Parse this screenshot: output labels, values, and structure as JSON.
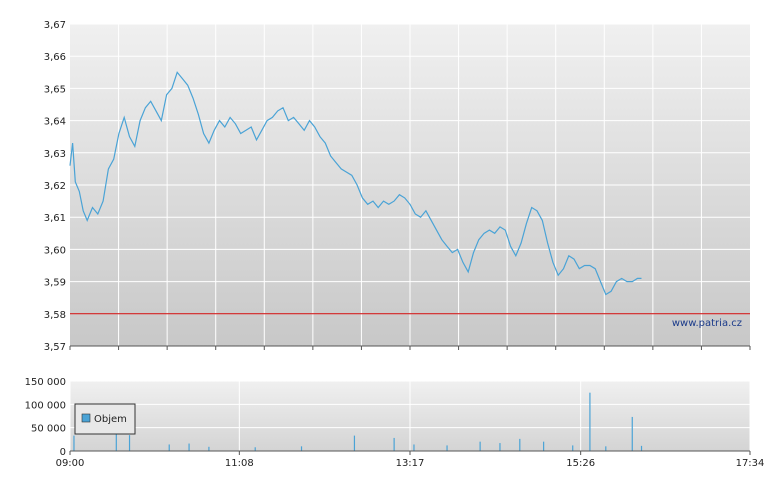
{
  "chart_data": [
    {
      "type": "line",
      "title": "",
      "xlabel": "",
      "ylabel": "",
      "ylim": [
        3.57,
        3.67
      ],
      "y_ticks": [
        "3,57",
        "3,58",
        "3,59",
        "3,60",
        "3,61",
        "3,62",
        "3,63",
        "3,64",
        "3,65",
        "3,66",
        "3,67"
      ],
      "x_ticks": [],
      "grid": true,
      "series": [
        {
          "color": "#4aa3d6",
          "points": [
            [
              "09:00",
              3.626
            ],
            [
              "09:02",
              3.633
            ],
            [
              "09:04",
              3.621
            ],
            [
              "09:07",
              3.618
            ],
            [
              "09:10",
              3.612
            ],
            [
              "09:13",
              3.609
            ],
            [
              "09:17",
              3.613
            ],
            [
              "09:21",
              3.611
            ],
            [
              "09:25",
              3.615
            ],
            [
              "09:29",
              3.625
            ],
            [
              "09:33",
              3.628
            ],
            [
              "09:37",
              3.636
            ],
            [
              "09:41",
              3.641
            ],
            [
              "09:45",
              3.635
            ],
            [
              "09:49",
              3.632
            ],
            [
              "09:53",
              3.64
            ],
            [
              "09:57",
              3.644
            ],
            [
              "10:01",
              3.646
            ],
            [
              "10:05",
              3.643
            ],
            [
              "10:09",
              3.64
            ],
            [
              "10:13",
              3.648
            ],
            [
              "10:17",
              3.65
            ],
            [
              "10:21",
              3.655
            ],
            [
              "10:25",
              3.653
            ],
            [
              "10:29",
              3.651
            ],
            [
              "10:33",
              3.647
            ],
            [
              "10:37",
              3.642
            ],
            [
              "10:41",
              3.636
            ],
            [
              "10:45",
              3.633
            ],
            [
              "10:49",
              3.637
            ],
            [
              "10:53",
              3.64
            ],
            [
              "10:57",
              3.638
            ],
            [
              "11:01",
              3.641
            ],
            [
              "11:05",
              3.639
            ],
            [
              "11:09",
              3.636
            ],
            [
              "11:13",
              3.637
            ],
            [
              "11:17",
              3.638
            ],
            [
              "11:21",
              3.634
            ],
            [
              "11:25",
              3.637
            ],
            [
              "11:29",
              3.64
            ],
            [
              "11:33",
              3.641
            ],
            [
              "11:37",
              3.643
            ],
            [
              "11:41",
              3.644
            ],
            [
              "11:45",
              3.64
            ],
            [
              "11:49",
              3.641
            ],
            [
              "11:53",
              3.639
            ],
            [
              "11:57",
              3.637
            ],
            [
              "12:01",
              3.64
            ],
            [
              "12:05",
              3.638
            ],
            [
              "12:09",
              3.635
            ],
            [
              "12:13",
              3.633
            ],
            [
              "12:17",
              3.629
            ],
            [
              "12:21",
              3.627
            ],
            [
              "12:25",
              3.625
            ],
            [
              "12:29",
              3.624
            ],
            [
              "12:33",
              3.623
            ],
            [
              "12:37",
              3.62
            ],
            [
              "12:41",
              3.616
            ],
            [
              "12:45",
              3.614
            ],
            [
              "12:49",
              3.615
            ],
            [
              "12:53",
              3.613
            ],
            [
              "12:57",
              3.615
            ],
            [
              "13:01",
              3.614
            ],
            [
              "13:05",
              3.615
            ],
            [
              "13:09",
              3.617
            ],
            [
              "13:13",
              3.616
            ],
            [
              "13:17",
              3.614
            ],
            [
              "13:21",
              3.611
            ],
            [
              "13:25",
              3.61
            ],
            [
              "13:29",
              3.612
            ],
            [
              "13:33",
              3.609
            ],
            [
              "13:37",
              3.606
            ],
            [
              "13:41",
              3.603
            ],
            [
              "13:45",
              3.601
            ],
            [
              "13:49",
              3.599
            ],
            [
              "13:53",
              3.6
            ],
            [
              "13:57",
              3.596
            ],
            [
              "14:01",
              3.593
            ],
            [
              "14:05",
              3.599
            ],
            [
              "14:09",
              3.603
            ],
            [
              "14:13",
              3.605
            ],
            [
              "14:17",
              3.606
            ],
            [
              "14:21",
              3.605
            ],
            [
              "14:25",
              3.607
            ],
            [
              "14:29",
              3.606
            ],
            [
              "14:33",
              3.601
            ],
            [
              "14:37",
              3.598
            ],
            [
              "14:41",
              3.602
            ],
            [
              "14:45",
              3.608
            ],
            [
              "14:49",
              3.613
            ],
            [
              "14:53",
              3.612
            ],
            [
              "14:57",
              3.609
            ],
            [
              "15:01",
              3.602
            ],
            [
              "15:05",
              3.596
            ],
            [
              "15:09",
              3.592
            ],
            [
              "15:13",
              3.594
            ],
            [
              "15:17",
              3.598
            ],
            [
              "15:21",
              3.597
            ],
            [
              "15:25",
              3.594
            ],
            [
              "15:29",
              3.595
            ],
            [
              "15:33",
              3.595
            ],
            [
              "15:37",
              3.594
            ],
            [
              "15:41",
              3.59
            ],
            [
              "15:45",
              3.586
            ],
            [
              "15:49",
              3.587
            ],
            [
              "15:53",
              3.59
            ],
            [
              "15:57",
              3.591
            ],
            [
              "16:01",
              3.59
            ],
            [
              "16:05",
              3.59
            ],
            [
              "16:09",
              3.591
            ],
            [
              "16:12",
              3.591
            ]
          ]
        }
      ],
      "annotations": [
        "www.patria.cz"
      ],
      "reference_lines": [
        {
          "y": 3.58,
          "color": "#cc0000"
        }
      ]
    },
    {
      "type": "bar",
      "title": "",
      "ylim": [
        0,
        150000
      ],
      "y_ticks": [
        "0",
        "50 000",
        "100 000",
        "150 000"
      ],
      "x_ticks": [
        "09:00",
        "11:08",
        "13:17",
        "15:26",
        "17:34"
      ],
      "grid": true,
      "legend": {
        "position": "top-left",
        "entries": [
          "Objem"
        ]
      },
      "series": [
        {
          "name": "Objem",
          "color": "#4aa3d6",
          "points": [
            [
              "09:03",
              33000
            ],
            [
              "09:35",
              51000
            ],
            [
              "09:45",
              34000
            ],
            [
              "10:15",
              14000
            ],
            [
              "10:30",
              16000
            ],
            [
              "10:45",
              9000
            ],
            [
              "11:20",
              8000
            ],
            [
              "11:55",
              10000
            ],
            [
              "12:35",
              33000
            ],
            [
              "13:05",
              28000
            ],
            [
              "13:20",
              14000
            ],
            [
              "13:45",
              12000
            ],
            [
              "14:10",
              20000
            ],
            [
              "14:25",
              17000
            ],
            [
              "14:40",
              26000
            ],
            [
              "14:58",
              20000
            ],
            [
              "15:20",
              12000
            ],
            [
              "15:33",
              125000
            ],
            [
              "15:45",
              10000
            ],
            [
              "16:05",
              73000
            ],
            [
              "16:12",
              11000
            ]
          ]
        }
      ]
    }
  ]
}
